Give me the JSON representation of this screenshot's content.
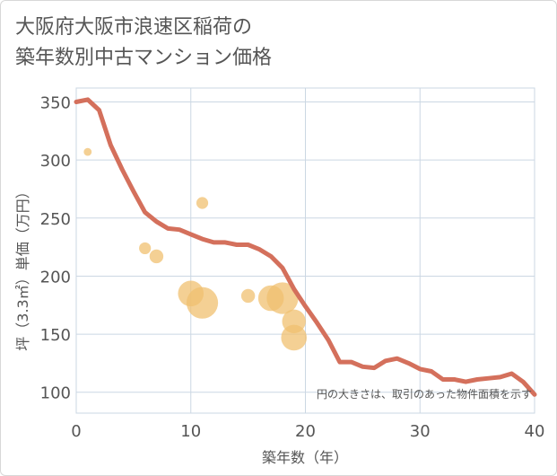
{
  "chart_data": {
    "type": "scatter",
    "title": [
      "大阪府大阪市浪速区稲荷の",
      "築年数別中古マンション価格"
    ],
    "xlabel": "築年数（年）",
    "ylabel": "坪（3.3㎡）単価（万円）",
    "xlim": [
      0,
      40
    ],
    "ylim": [
      82,
      362
    ],
    "x_ticks": [
      0,
      10,
      20,
      30,
      40
    ],
    "y_ticks": [
      100,
      150,
      200,
      250,
      300,
      350
    ],
    "annotation": "円の大きさは、取引のあった物件面積を示す",
    "colors": {
      "line": "#d4705c",
      "bubble": "#f0c070",
      "grid": "#cbd7e3",
      "axis_text": "#555555"
    },
    "series": [
      {
        "name": "bubbles",
        "points": [
          {
            "x": 1,
            "y": 307,
            "size": 2
          },
          {
            "x": 6,
            "y": 224,
            "size": 4
          },
          {
            "x": 7,
            "y": 217,
            "size": 5
          },
          {
            "x": 10,
            "y": 185,
            "size": 11
          },
          {
            "x": 11,
            "y": 177,
            "size": 14
          },
          {
            "x": 11,
            "y": 263,
            "size": 4
          },
          {
            "x": 15,
            "y": 183,
            "size": 5
          },
          {
            "x": 17,
            "y": 181,
            "size": 11
          },
          {
            "x": 18,
            "y": 181,
            "size": 14
          },
          {
            "x": 19,
            "y": 161,
            "size": 10
          },
          {
            "x": 19,
            "y": 147,
            "size": 11
          }
        ]
      },
      {
        "name": "trend",
        "x": [
          0,
          1,
          2,
          3,
          4,
          5,
          6,
          7,
          8,
          9,
          10,
          11,
          12,
          13,
          14,
          15,
          16,
          17,
          18,
          19,
          20,
          21,
          22,
          23,
          24,
          25,
          26,
          27,
          28,
          29,
          30,
          31,
          32,
          33,
          34,
          35,
          36,
          37,
          38,
          39,
          40
        ],
        "y": [
          350,
          352,
          343,
          313,
          292,
          273,
          255,
          247,
          241,
          240,
          236,
          232,
          229,
          229,
          227,
          227,
          223,
          217,
          207,
          189,
          174,
          160,
          145,
          126,
          126,
          122,
          121,
          127,
          129,
          125,
          120,
          118,
          111,
          111,
          109,
          111,
          112,
          113,
          116,
          109,
          98
        ]
      }
    ]
  }
}
